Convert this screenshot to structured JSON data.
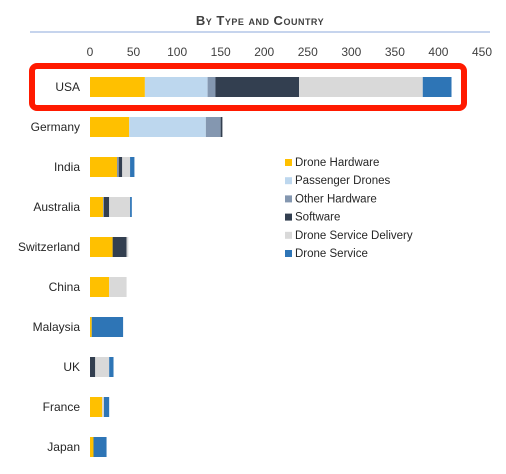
{
  "chart_data": {
    "type": "bar",
    "orientation": "horizontal",
    "stacked": true,
    "title": "By Type and Country",
    "xlim": [
      0,
      450
    ],
    "x_ticks": [
      0,
      50,
      100,
      150,
      200,
      250,
      300,
      350,
      400,
      450
    ],
    "grid": false,
    "legend_position": "right",
    "categories": [
      "USA",
      "Germany",
      "India",
      "Australia",
      "Switzerland",
      "China",
      "Malaysia",
      "UK",
      "France",
      "Japan"
    ],
    "highlighted_category": "USA",
    "highlight_color": "#ff1a00",
    "series": [
      {
        "name": "Drone Hardware",
        "color": "#ffc000",
        "values": [
          63,
          45,
          31,
          15,
          26,
          22,
          2,
          0,
          14,
          4
        ]
      },
      {
        "name": "Passenger Drones",
        "color": "#bdd7ee",
        "values": [
          72,
          88,
          0,
          0,
          0,
          0,
          0,
          0,
          0,
          0
        ]
      },
      {
        "name": "Other Hardware",
        "color": "#8497b0",
        "values": [
          9,
          17,
          2,
          1,
          0,
          0,
          0,
          0,
          0,
          0
        ]
      },
      {
        "name": "Software",
        "color": "#333f50",
        "values": [
          96,
          2,
          4,
          6,
          16,
          0,
          0,
          6,
          0,
          0
        ]
      },
      {
        "name": "Drone Service Delivery",
        "color": "#d9d9d9",
        "values": [
          142,
          0,
          9,
          24,
          2,
          20,
          0,
          16,
          2,
          0
        ]
      },
      {
        "name": "Drone Service",
        "color": "#2e75b6",
        "values": [
          33,
          0,
          5,
          2,
          0,
          0,
          36,
          5,
          6,
          15
        ]
      }
    ]
  }
}
